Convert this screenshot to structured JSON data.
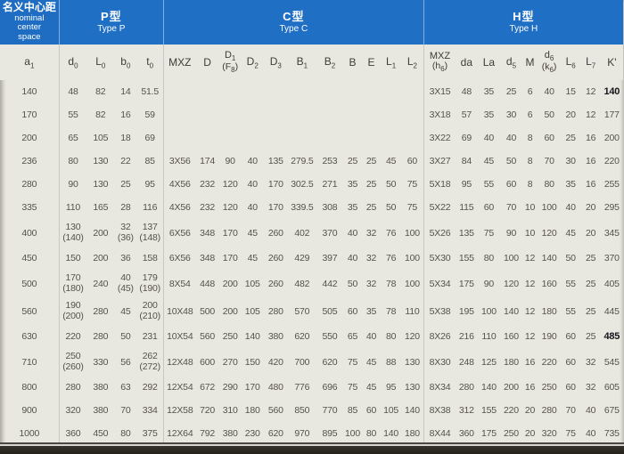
{
  "header": {
    "col1_zh": "名义中心距",
    "col1_en": "nominal\ncenter\nspace",
    "groups": [
      {
        "zh": "P型",
        "en": "Type P"
      },
      {
        "zh": "C型",
        "en": "Type C"
      },
      {
        "zh": "H型",
        "en": "Type H"
      }
    ]
  },
  "columns": [
    {
      "p": [
        "a",
        {
          "s": "1"
        }
      ]
    },
    {
      "p": [
        "d",
        {
          "s": "0"
        }
      ]
    },
    {
      "p": [
        "L",
        {
          "s": "0"
        }
      ]
    },
    {
      "p": [
        "b",
        {
          "s": "0"
        }
      ]
    },
    {
      "p": [
        "t",
        {
          "s": "0"
        }
      ]
    },
    {
      "p": [
        "MXZ"
      ]
    },
    {
      "p": [
        "D"
      ]
    },
    {
      "p": [
        "D",
        {
          "s": "1"
        }
      ],
      "p2": [
        "(F",
        {
          "s": "8"
        },
        ")"
      ]
    },
    {
      "p": [
        "D",
        {
          "s": "2"
        }
      ]
    },
    {
      "p": [
        "D",
        {
          "s": "3"
        }
      ]
    },
    {
      "p": [
        "B",
        {
          "s": "1"
        }
      ]
    },
    {
      "p": [
        "B",
        {
          "s": "2"
        }
      ]
    },
    {
      "p": [
        "B"
      ]
    },
    {
      "p": [
        "E"
      ]
    },
    {
      "p": [
        "L",
        {
          "s": "1"
        }
      ]
    },
    {
      "p": [
        "L",
        {
          "s": "2"
        }
      ]
    },
    {
      "p": [
        "MXZ"
      ],
      "p2": [
        "(h",
        {
          "s": "6"
        },
        ")"
      ]
    },
    {
      "p": [
        "da"
      ]
    },
    {
      "p": [
        "La"
      ]
    },
    {
      "p": [
        "d",
        {
          "s": "5"
        }
      ]
    },
    {
      "p": [
        "M"
      ]
    },
    {
      "p": [
        "d",
        {
          "s": "6"
        }
      ],
      "p2": [
        "(k",
        {
          "s": "6"
        },
        ")"
      ]
    },
    {
      "p": [
        "L",
        {
          "s": "6"
        }
      ]
    },
    {
      "p": [
        "L",
        {
          "s": "7"
        }
      ]
    },
    {
      "p": [
        "K'"
      ]
    }
  ],
  "rows": [
    [
      "140",
      "48",
      "82",
      "14",
      "51.5",
      "",
      "",
      "",
      "",
      "",
      "",
      "",
      "",
      "",
      "",
      "",
      "3X15",
      "48",
      "35",
      "25",
      "6",
      "40",
      "15",
      "12",
      {
        "v": "140",
        "bold": true
      }
    ],
    [
      "170",
      "55",
      "82",
      "16",
      "59",
      "",
      "",
      "",
      "",
      "",
      "",
      "",
      "",
      "",
      "",
      "",
      "3X18",
      "57",
      "35",
      "30",
      "6",
      "50",
      "20",
      "12",
      "177"
    ],
    [
      "200",
      "65",
      "105",
      "18",
      "69",
      "",
      "",
      "",
      "",
      "",
      "",
      "",
      "",
      "",
      "",
      "",
      "3X22",
      "69",
      "40",
      "40",
      "8",
      "60",
      "25",
      "16",
      "200"
    ],
    [
      "236",
      "80",
      "130",
      "22",
      "85",
      "3X56",
      "174",
      "90",
      "40",
      "135",
      "279.5",
      "253",
      "25",
      "25",
      "45",
      "60",
      "3X27",
      "84",
      "45",
      "50",
      "8",
      "70",
      "30",
      "16",
      "220"
    ],
    [
      "280",
      "90",
      "130",
      "25",
      "95",
      "4X56",
      "232",
      "120",
      "40",
      "170",
      "302.5",
      "271",
      "35",
      "25",
      "50",
      "75",
      "5X18",
      "95",
      "55",
      "60",
      "8",
      "80",
      "35",
      "16",
      "255"
    ],
    [
      "335",
      "110",
      "165",
      "28",
      "116",
      "4X56",
      "232",
      "120",
      "40",
      "170",
      "339.5",
      "308",
      "35",
      "25",
      "50",
      "75",
      "5X22",
      "115",
      "60",
      "70",
      "10",
      "100",
      "40",
      "20",
      "295"
    ],
    [
      "400",
      [
        "130",
        "(140)"
      ],
      "200",
      [
        "32",
        "(36)"
      ],
      [
        "137",
        "(148)"
      ],
      "6X56",
      "348",
      "170",
      "45",
      "260",
      "402",
      "370",
      "40",
      "32",
      "76",
      "100",
      "5X26",
      "135",
      "75",
      "90",
      "10",
      "120",
      "45",
      "20",
      "345"
    ],
    [
      "450",
      "150",
      "200",
      "36",
      "158",
      "6X56",
      "348",
      "170",
      "45",
      "260",
      "429",
      "397",
      "40",
      "32",
      "76",
      "100",
      "5X30",
      "155",
      "80",
      "100",
      "12",
      "140",
      "50",
      "25",
      "370"
    ],
    [
      "500",
      [
        "170",
        "(180)"
      ],
      "240",
      [
        "40",
        "(45)"
      ],
      [
        "179",
        "(190)"
      ],
      "8X54",
      "448",
      "200",
      "105",
      "260",
      "482",
      "442",
      "50",
      "32",
      "78",
      "100",
      "5X34",
      "175",
      "90",
      "120",
      "12",
      "160",
      "55",
      "25",
      "405"
    ],
    [
      "560",
      [
        "190",
        "(200)"
      ],
      "280",
      "45",
      [
        "200",
        "(210)"
      ],
      "10X48",
      "500",
      "200",
      "105",
      "280",
      "570",
      "505",
      "60",
      "35",
      "78",
      "110",
      "5X38",
      "195",
      "100",
      "140",
      "12",
      "180",
      "55",
      "25",
      "445"
    ],
    [
      "630",
      "220",
      "280",
      "50",
      "231",
      "10X54",
      "560",
      "250",
      "140",
      "380",
      "620",
      "550",
      "65",
      "40",
      "80",
      "120",
      "8X26",
      "216",
      "110",
      "160",
      "12",
      "190",
      "60",
      "25",
      {
        "v": "485",
        "bold": true
      }
    ],
    [
      "710",
      [
        "250",
        "(260)"
      ],
      "330",
      "56",
      [
        "262",
        "(272)"
      ],
      "12X48",
      "600",
      "270",
      "150",
      "420",
      "700",
      "620",
      "75",
      "45",
      "88",
      "130",
      "8X30",
      "248",
      "125",
      "180",
      "16",
      "220",
      "60",
      "32",
      "545"
    ],
    [
      "800",
      "280",
      "380",
      "63",
      "292",
      "12X54",
      "672",
      "290",
      "170",
      "480",
      "776",
      "696",
      "75",
      "45",
      "95",
      "130",
      "8X34",
      "280",
      "140",
      "200",
      "16",
      "250",
      "60",
      "32",
      "605"
    ],
    [
      "900",
      "320",
      "380",
      "70",
      "334",
      "12X58",
      "720",
      "310",
      "180",
      "560",
      "850",
      "770",
      "85",
      "60",
      "105",
      "140",
      "8X38",
      "312",
      "155",
      "220",
      "20",
      "280",
      "70",
      "40",
      "675"
    ],
    [
      "1000",
      "360",
      "450",
      "80",
      "375",
      "12X64",
      "792",
      "380",
      "230",
      "620",
      "970",
      "895",
      "100",
      "80",
      "140",
      "180",
      "8X44",
      "360",
      "175",
      "250",
      "20",
      "320",
      "75",
      "40",
      "735"
    ]
  ],
  "colors": {
    "header_blue": "#1f6fc5",
    "body_bg": "#e9e8e0",
    "data_text": "#54524a",
    "bold_text": "#14141a"
  }
}
